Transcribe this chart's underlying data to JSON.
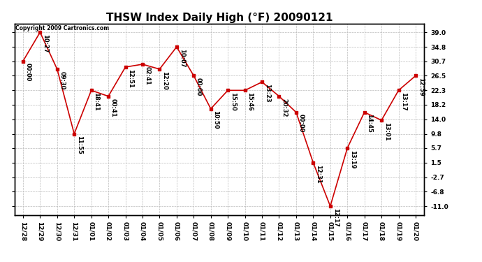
{
  "title": "THSW Index Daily High (°F) 20090121",
  "copyright_text": "Copyright 2009 Cartronics.com",
  "x_labels": [
    "12/28",
    "12/29",
    "12/30",
    "12/31",
    "01/01",
    "01/02",
    "01/03",
    "01/04",
    "01/05",
    "01/06",
    "01/07",
    "01/08",
    "01/09",
    "01/10",
    "01/11",
    "01/12",
    "01/13",
    "01/14",
    "01/15",
    "01/16",
    "01/17",
    "01/18",
    "01/19",
    "01/20"
  ],
  "y_values": [
    30.7,
    39.0,
    28.4,
    9.8,
    22.3,
    20.6,
    29.0,
    29.8,
    28.4,
    34.8,
    26.5,
    17.0,
    22.3,
    22.3,
    24.7,
    20.6,
    16.0,
    1.5,
    -11.0,
    5.7,
    16.0,
    13.7,
    22.3,
    26.5
  ],
  "point_labels": [
    "00:00",
    "10:27",
    "09:30",
    "11:55",
    "18:41",
    "00:41",
    "12:51",
    "02:41",
    "12:20",
    "10:07",
    "00:00",
    "10:50",
    "15:50",
    "15:46",
    "13:23",
    "20:32",
    "00:00",
    "12:31",
    "12:17",
    "13:19",
    "14:45",
    "13:01",
    "13:17",
    "12:59"
  ],
  "yticks": [
    39.0,
    34.8,
    30.7,
    26.5,
    22.3,
    18.2,
    14.0,
    9.8,
    5.7,
    1.5,
    -2.7,
    -6.8,
    -11.0
  ],
  "line_color": "#cc0000",
  "marker_color": "#cc0000",
  "bg_color": "#ffffff",
  "grid_color": "#bbbbbb",
  "title_fontsize": 11,
  "label_fontsize": 6,
  "tick_fontsize": 6.5,
  "ylim_min": -13.5,
  "ylim_max": 41.5,
  "fig_width": 6.9,
  "fig_height": 3.75,
  "dpi": 100
}
